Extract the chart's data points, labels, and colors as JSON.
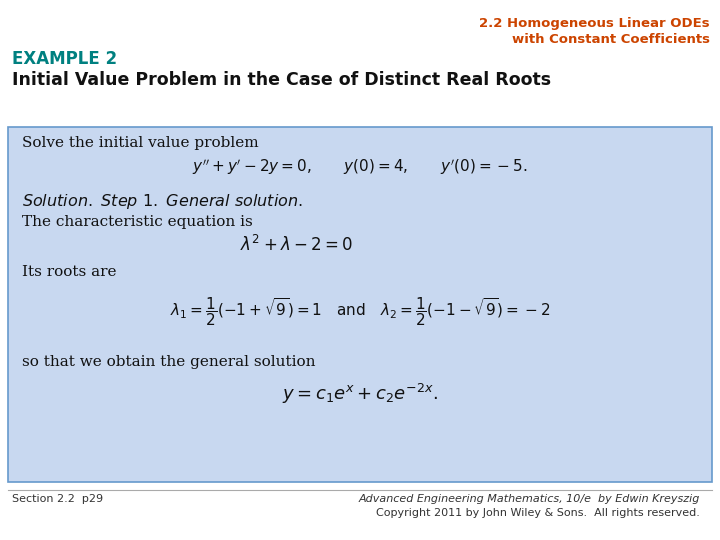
{
  "bg_color": "#ffffff",
  "header_color": "#cc4400",
  "title_line1": "2.2 Homogeneous Linear ODEs",
  "title_line2": "with Constant Coefficients",
  "example_label": "EXAMPLE 2",
  "example_label_color": "#008080",
  "subtitle": "Initial Value Problem in the Case of Distinct Real Roots",
  "box_bg_color": "#c8d8f0",
  "box_border_color": "#6699cc",
  "footer_left": "Section 2.2  p29",
  "footer_right_line1": "Advanced Engineering Mathematics, 10/e  by Edwin Kreyszig",
  "footer_right_line2": "Copyright 2011 by John Wiley & Sons.  All rights reserved."
}
